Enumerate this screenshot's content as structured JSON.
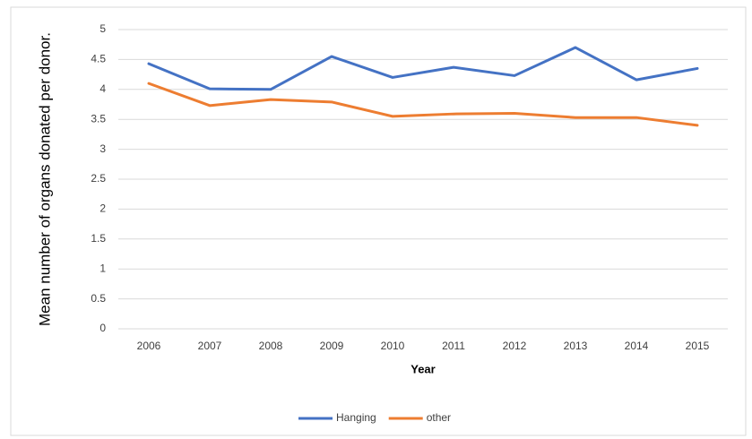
{
  "chart_data": {
    "type": "line",
    "x_label": "Year",
    "y_label": "Mean number of organs donated per donor.",
    "categories": [
      "2006",
      "2007",
      "2008",
      "2009",
      "2010",
      "2011",
      "2012",
      "2013",
      "2014",
      "2015"
    ],
    "series": [
      {
        "name": "Hanging",
        "color": "#4472c4",
        "values": [
          4.43,
          4.01,
          4.0,
          4.55,
          4.2,
          4.37,
          4.23,
          4.7,
          4.16,
          4.35
        ]
      },
      {
        "name": "other",
        "color": "#ed7d31",
        "values": [
          4.1,
          3.73,
          3.83,
          3.79,
          3.55,
          3.59,
          3.6,
          3.53,
          3.53,
          3.4
        ]
      }
    ],
    "ylim": [
      0,
      5
    ],
    "yticks": [
      0,
      0.5,
      1,
      1.5,
      2,
      2.5,
      3,
      3.5,
      4,
      4.5,
      5
    ],
    "grid": true,
    "legend": "bottom"
  }
}
